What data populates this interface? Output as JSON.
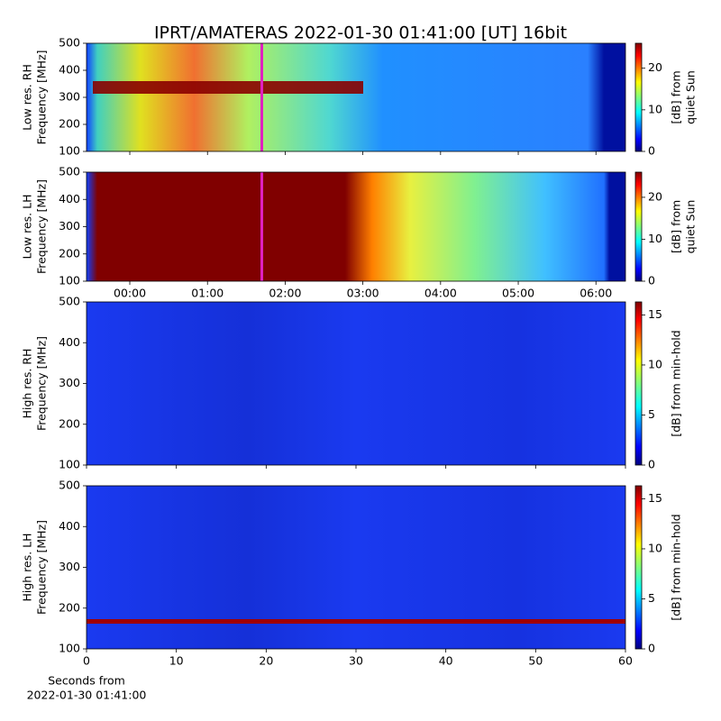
{
  "title": "IPRT/AMATERAS 2022-01-30 01:41:00 [UT]   16bit",
  "x_label": [
    "Seconds from",
    "2022-01-30 01:41:00"
  ],
  "chart_data": [
    {
      "type": "heatmap",
      "ylabel": [
        "Low res. RH",
        "Frequency [MHz]"
      ],
      "ylim": [
        100,
        500
      ],
      "yticks": [
        100,
        200,
        300,
        400,
        500
      ],
      "colorbar": {
        "label": [
          "[dB] from",
          "quiet Sun"
        ],
        "lim": [
          0,
          26
        ],
        "ticks": [
          0,
          10,
          20
        ]
      }
    },
    {
      "type": "heatmap",
      "ylabel": [
        "Low res. LH",
        "Frequency [MHz]"
      ],
      "ylim": [
        100,
        500
      ],
      "yticks": [
        100,
        200,
        300,
        400,
        500
      ],
      "xlim": [
        -0.557,
        6.38
      ],
      "xticks": [
        {
          "value": 0,
          "label": "00:00"
        },
        {
          "value": 1,
          "label": "01:00"
        },
        {
          "value": 2,
          "label": "02:00"
        },
        {
          "value": 3,
          "label": "03:00"
        },
        {
          "value": 4,
          "label": "04:00"
        },
        {
          "value": 5,
          "label": "05:00"
        },
        {
          "value": 6,
          "label": "06:00"
        }
      ],
      "colorbar": {
        "label": [
          "[dB] from",
          "quiet Sun"
        ],
        "lim": [
          0,
          26
        ],
        "ticks": [
          0,
          10,
          20
        ]
      }
    },
    {
      "type": "heatmap",
      "ylabel": [
        "High res. RH",
        "Frequency [MHz]"
      ],
      "ylim": [
        100,
        500
      ],
      "yticks": [
        100,
        200,
        300,
        400,
        500
      ],
      "colorbar": {
        "label": [
          "[dB] from min-hold"
        ],
        "lim": [
          0,
          16.3
        ],
        "ticks": [
          0,
          5,
          10,
          15
        ]
      }
    },
    {
      "type": "heatmap",
      "ylabel": [
        "High res. LH",
        "Frequency [MHz]"
      ],
      "ylim": [
        100,
        500
      ],
      "yticks": [
        100,
        200,
        300,
        400,
        500
      ],
      "xlim": [
        0,
        60
      ],
      "xticks": [
        0,
        10,
        20,
        30,
        40,
        50,
        60
      ],
      "colorbar": {
        "label": [
          "[dB] from min-hold"
        ],
        "lim": [
          0,
          16.3
        ],
        "ticks": [
          0,
          5,
          10,
          15
        ]
      }
    }
  ]
}
